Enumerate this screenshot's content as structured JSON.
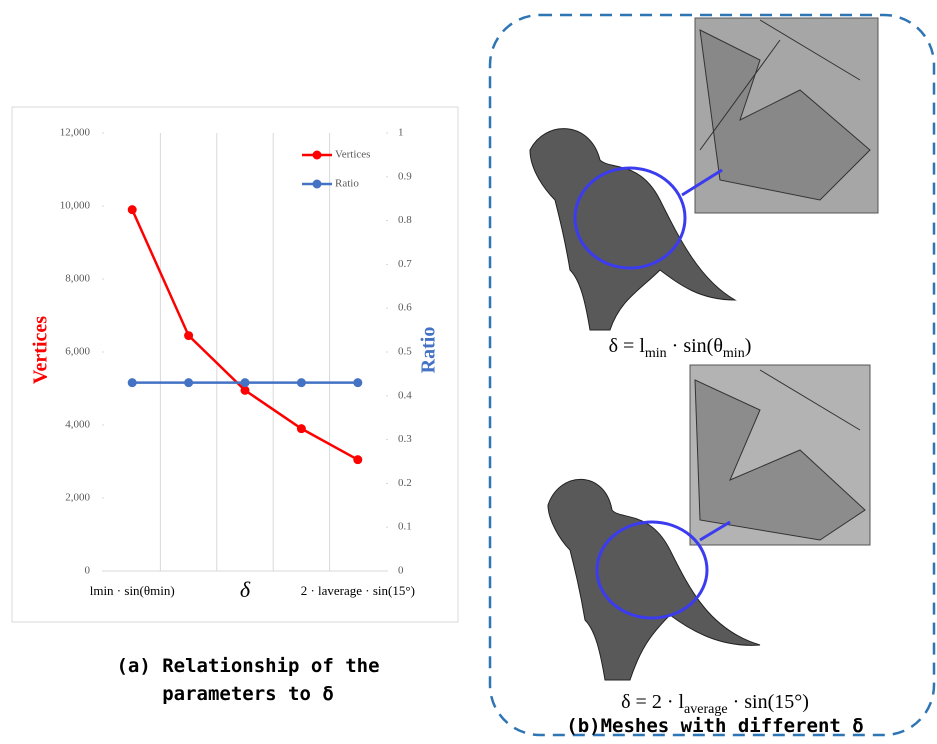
{
  "chart_data": {
    "type": "line",
    "categories": [
      "lmin · sin(θmin)",
      null,
      "δ",
      null,
      "2 · laverage · sin(15°)"
    ],
    "y_label": "Vertices",
    "y2_label": "Ratio",
    "series": [
      {
        "name": "Vertices",
        "color": "#ff0000",
        "values": [
          9900,
          6450,
          4950,
          3900,
          3050
        ]
      },
      {
        "name": "Ratio",
        "color": "#4472c4",
        "axis": "y2",
        "values": [
          0.43,
          0.43,
          0.43,
          0.43,
          0.43
        ]
      }
    ],
    "ylim": [
      0,
      12000
    ],
    "yticks": [
      0,
      {
        "value": 2000,
        "label": "2,000"
      },
      {
        "value": 4000,
        "label": "4,000"
      },
      {
        "value": 6000,
        "label": "6,000"
      },
      {
        "value": 8000,
        "label": "8,000"
      },
      {
        "value": 10000,
        "label": "10,000"
      },
      {
        "value": 12000,
        "label": "12,000"
      }
    ],
    "y2lim": [
      0,
      1
    ],
    "y2ticks": [
      0,
      0.1,
      0.2,
      0.3,
      0.4,
      0.5,
      0.6,
      0.7,
      0.8,
      0.9,
      1
    ],
    "grid": true,
    "legend": "upper right"
  },
  "captions": {
    "a": [
      "(a) Relationship of the",
      "parameters to δ"
    ],
    "b": "(b)Meshes with different δ"
  },
  "formulas": [
    [
      "δ = l",
      "min",
      " · sin(θ",
      "min",
      ")"
    ],
    [
      "δ = 2 · l",
      "average",
      " · sin(15°)"
    ]
  ]
}
